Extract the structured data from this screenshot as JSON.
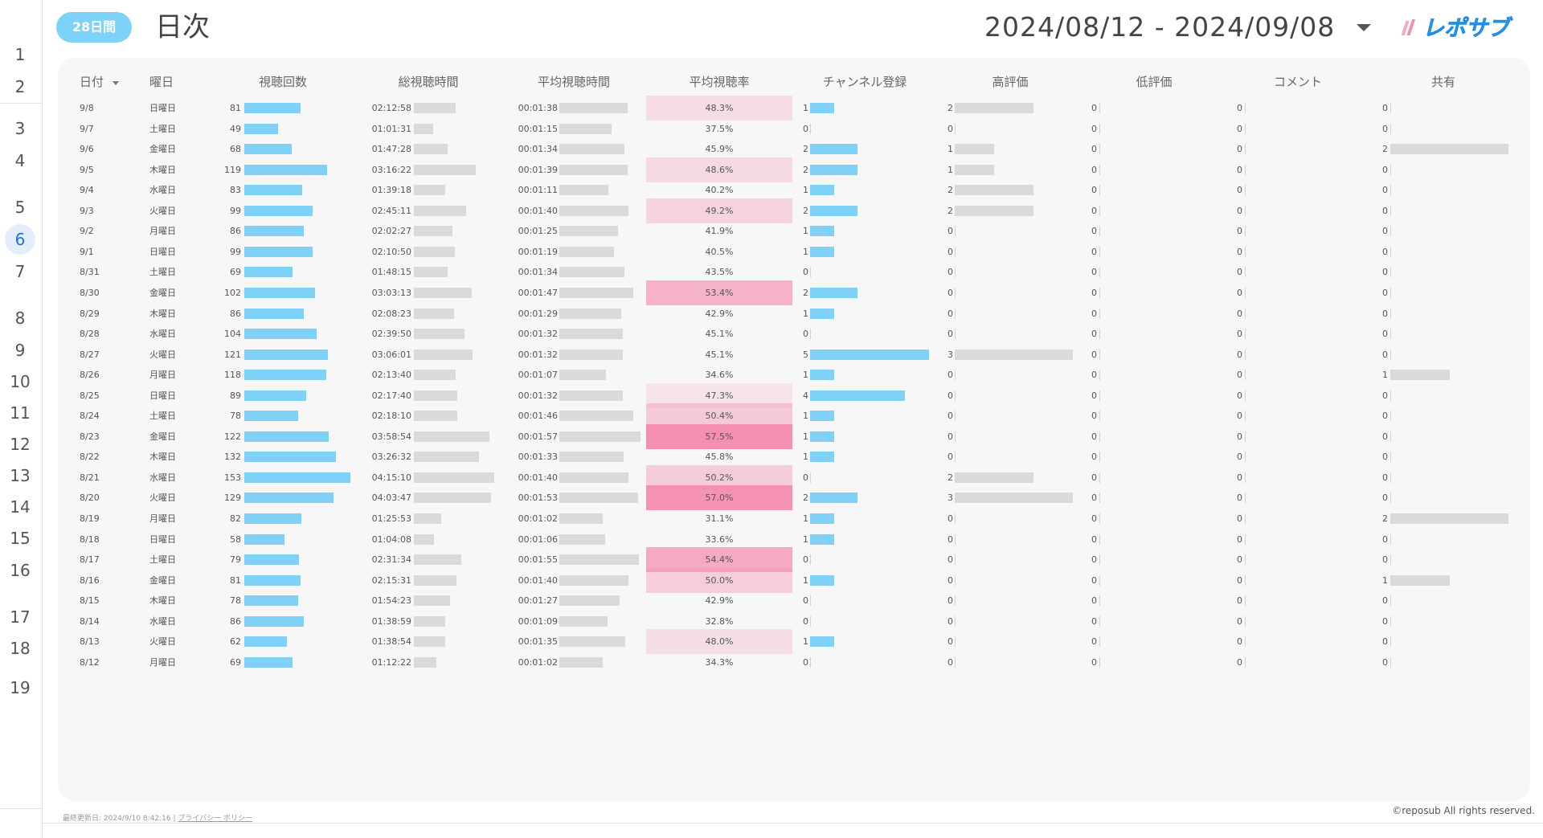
{
  "header": {
    "period_badge": "28日間",
    "title": "日次",
    "date_range": "2024/08/12 - 2024/09/08",
    "logo_text": "レポサブ"
  },
  "rail": {
    "pages": [
      "1",
      "2",
      "3",
      "4",
      "5",
      "6",
      "7",
      "8",
      "9",
      "10",
      "11",
      "12",
      "13",
      "14",
      "15",
      "16",
      "17",
      "18",
      "19"
    ],
    "active_page": "6"
  },
  "table": {
    "columns": [
      "日付",
      "曜日",
      "視聴回数",
      "総視聴時間",
      "平均視聴時間",
      "平均視聴率",
      "チャンネル登録",
      "高評価",
      "低評価",
      "コメント",
      "共有"
    ],
    "rows": [
      {
        "date": "9/8",
        "dow": "日曜日",
        "views": 81,
        "watch": "02:12:58",
        "avg": "00:01:38",
        "rate": 48.3,
        "rate_label": "48.3%",
        "subs": 1,
        "likes": 2,
        "dislikes": 0,
        "comments": 0,
        "shares": 0
      },
      {
        "date": "9/7",
        "dow": "土曜日",
        "views": 49,
        "watch": "01:01:31",
        "avg": "00:01:15",
        "rate": 37.5,
        "rate_label": "37.5%",
        "subs": 0,
        "likes": 0,
        "dislikes": 0,
        "comments": 0,
        "shares": 0
      },
      {
        "date": "9/6",
        "dow": "金曜日",
        "views": 68,
        "watch": "01:47:28",
        "avg": "00:01:34",
        "rate": 45.9,
        "rate_label": "45.9%",
        "subs": 2,
        "likes": 1,
        "dislikes": 0,
        "comments": 0,
        "shares": 2
      },
      {
        "date": "9/5",
        "dow": "木曜日",
        "views": 119,
        "watch": "03:16:22",
        "avg": "00:01:39",
        "rate": 48.6,
        "rate_label": "48.6%",
        "subs": 2,
        "likes": 1,
        "dislikes": 0,
        "comments": 0,
        "shares": 0
      },
      {
        "date": "9/4",
        "dow": "水曜日",
        "views": 83,
        "watch": "01:39:18",
        "avg": "00:01:11",
        "rate": 40.2,
        "rate_label": "40.2%",
        "subs": 1,
        "likes": 2,
        "dislikes": 0,
        "comments": 0,
        "shares": 0
      },
      {
        "date": "9/3",
        "dow": "火曜日",
        "views": 99,
        "watch": "02:45:11",
        "avg": "00:01:40",
        "rate": 49.2,
        "rate_label": "49.2%",
        "subs": 2,
        "likes": 2,
        "dislikes": 0,
        "comments": 0,
        "shares": 0
      },
      {
        "date": "9/2",
        "dow": "月曜日",
        "views": 86,
        "watch": "02:02:27",
        "avg": "00:01:25",
        "rate": 41.9,
        "rate_label": "41.9%",
        "subs": 1,
        "likes": 0,
        "dislikes": 0,
        "comments": 0,
        "shares": 0
      },
      {
        "date": "9/1",
        "dow": "日曜日",
        "views": 99,
        "watch": "02:10:50",
        "avg": "00:01:19",
        "rate": 40.5,
        "rate_label": "40.5%",
        "subs": 1,
        "likes": 0,
        "dislikes": 0,
        "comments": 0,
        "shares": 0
      },
      {
        "date": "8/31",
        "dow": "土曜日",
        "views": 69,
        "watch": "01:48:15",
        "avg": "00:01:34",
        "rate": 43.5,
        "rate_label": "43.5%",
        "subs": 0,
        "likes": 0,
        "dislikes": 0,
        "comments": 0,
        "shares": 0
      },
      {
        "date": "8/30",
        "dow": "金曜日",
        "views": 102,
        "watch": "03:03:13",
        "avg": "00:01:47",
        "rate": 53.4,
        "rate_label": "53.4%",
        "subs": 2,
        "likes": 0,
        "dislikes": 0,
        "comments": 0,
        "shares": 0
      },
      {
        "date": "8/29",
        "dow": "木曜日",
        "views": 86,
        "watch": "02:08:23",
        "avg": "00:01:29",
        "rate": 42.9,
        "rate_label": "42.9%",
        "subs": 1,
        "likes": 0,
        "dislikes": 0,
        "comments": 0,
        "shares": 0
      },
      {
        "date": "8/28",
        "dow": "水曜日",
        "views": 104,
        "watch": "02:39:50",
        "avg": "00:01:32",
        "rate": 45.1,
        "rate_label": "45.1%",
        "subs": 0,
        "likes": 0,
        "dislikes": 0,
        "comments": 0,
        "shares": 0
      },
      {
        "date": "8/27",
        "dow": "火曜日",
        "views": 121,
        "watch": "03:06:01",
        "avg": "00:01:32",
        "rate": 45.1,
        "rate_label": "45.1%",
        "subs": 5,
        "likes": 3,
        "dislikes": 0,
        "comments": 0,
        "shares": 0
      },
      {
        "date": "8/26",
        "dow": "月曜日",
        "views": 118,
        "watch": "02:13:40",
        "avg": "00:01:07",
        "rate": 34.6,
        "rate_label": "34.6%",
        "subs": 1,
        "likes": 0,
        "dislikes": 0,
        "comments": 0,
        "shares": 1
      },
      {
        "date": "8/25",
        "dow": "日曜日",
        "views": 89,
        "watch": "02:17:40",
        "avg": "00:01:32",
        "rate": 47.3,
        "rate_label": "47.3%",
        "subs": 4,
        "likes": 0,
        "dislikes": 0,
        "comments": 0,
        "shares": 0
      },
      {
        "date": "8/24",
        "dow": "土曜日",
        "views": 78,
        "watch": "02:18:10",
        "avg": "00:01:46",
        "rate": 50.4,
        "rate_label": "50.4%",
        "subs": 1,
        "likes": 0,
        "dislikes": 0,
        "comments": 0,
        "shares": 0
      },
      {
        "date": "8/23",
        "dow": "金曜日",
        "views": 122,
        "watch": "03:58:54",
        "avg": "00:01:57",
        "rate": 57.5,
        "rate_label": "57.5%",
        "subs": 1,
        "likes": 0,
        "dislikes": 0,
        "comments": 0,
        "shares": 0
      },
      {
        "date": "8/22",
        "dow": "木曜日",
        "views": 132,
        "watch": "03:26:32",
        "avg": "00:01:33",
        "rate": 45.8,
        "rate_label": "45.8%",
        "subs": 1,
        "likes": 0,
        "dislikes": 0,
        "comments": 0,
        "shares": 0
      },
      {
        "date": "8/21",
        "dow": "水曜日",
        "views": 153,
        "watch": "04:15:10",
        "avg": "00:01:40",
        "rate": 50.2,
        "rate_label": "50.2%",
        "subs": 0,
        "likes": 2,
        "dislikes": 0,
        "comments": 0,
        "shares": 0
      },
      {
        "date": "8/20",
        "dow": "火曜日",
        "views": 129,
        "watch": "04:03:47",
        "avg": "00:01:53",
        "rate": 57.0,
        "rate_label": "57.0%",
        "subs": 2,
        "likes": 3,
        "dislikes": 0,
        "comments": 0,
        "shares": 0
      },
      {
        "date": "8/19",
        "dow": "月曜日",
        "views": 82,
        "watch": "01:25:53",
        "avg": "00:01:02",
        "rate": 31.1,
        "rate_label": "31.1%",
        "subs": 1,
        "likes": 0,
        "dislikes": 0,
        "comments": 0,
        "shares": 2
      },
      {
        "date": "8/18",
        "dow": "日曜日",
        "views": 58,
        "watch": "01:04:08",
        "avg": "00:01:06",
        "rate": 33.6,
        "rate_label": "33.6%",
        "subs": 1,
        "likes": 0,
        "dislikes": 0,
        "comments": 0,
        "shares": 0
      },
      {
        "date": "8/17",
        "dow": "土曜日",
        "views": 79,
        "watch": "02:31:34",
        "avg": "00:01:55",
        "rate": 54.4,
        "rate_label": "54.4%",
        "subs": 0,
        "likes": 0,
        "dislikes": 0,
        "comments": 0,
        "shares": 0
      },
      {
        "date": "8/16",
        "dow": "金曜日",
        "views": 81,
        "watch": "02:15:31",
        "avg": "00:01:40",
        "rate": 50.0,
        "rate_label": "50.0%",
        "subs": 1,
        "likes": 0,
        "dislikes": 0,
        "comments": 0,
        "shares": 1
      },
      {
        "date": "8/15",
        "dow": "木曜日",
        "views": 78,
        "watch": "01:54:23",
        "avg": "00:01:27",
        "rate": 42.9,
        "rate_label": "42.9%",
        "subs": 0,
        "likes": 0,
        "dislikes": 0,
        "comments": 0,
        "shares": 0
      },
      {
        "date": "8/14",
        "dow": "水曜日",
        "views": 86,
        "watch": "01:38:59",
        "avg": "00:01:09",
        "rate": 32.8,
        "rate_label": "32.8%",
        "subs": 0,
        "likes": 0,
        "dislikes": 0,
        "comments": 0,
        "shares": 0
      },
      {
        "date": "8/13",
        "dow": "火曜日",
        "views": 62,
        "watch": "01:38:54",
        "avg": "00:01:35",
        "rate": 48.0,
        "rate_label": "48.0%",
        "subs": 1,
        "likes": 0,
        "dislikes": 0,
        "comments": 0,
        "shares": 0
      },
      {
        "date": "8/12",
        "dow": "月曜日",
        "views": 69,
        "watch": "01:12:22",
        "avg": "00:01:02",
        "rate": 34.3,
        "rate_label": "34.3%",
        "subs": 0,
        "likes": 0,
        "dislikes": 0,
        "comments": 0,
        "shares": 0
      }
    ]
  },
  "footer": {
    "last_updated": "最終更新日: 2024/9/10 8:42:16",
    "separator": "|",
    "privacy_link": "プライバシー ポリシー",
    "copyright": "©reposub All rights reserved."
  },
  "colors": {
    "badge": "#7dd3f7",
    "bar_blue": "#7fd1f7",
    "bar_grey": "#dadada",
    "heat_pink": "#f48fb1"
  }
}
